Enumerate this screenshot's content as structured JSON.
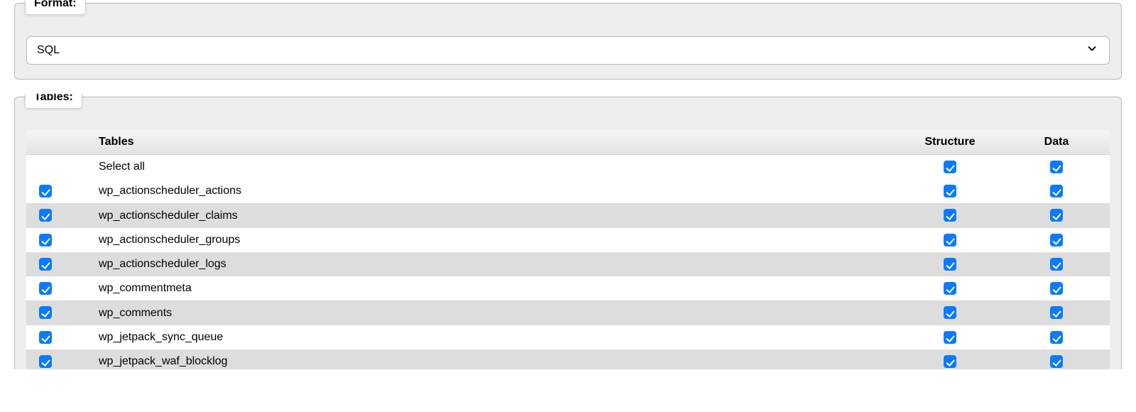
{
  "format": {
    "legend": "Format:",
    "value": "SQL"
  },
  "tables_section": {
    "legend": "Tables:",
    "columns": {
      "sel": "",
      "name": "Tables",
      "structure": "Structure",
      "data": "Data"
    },
    "select_all_label": "Select all",
    "select_all": {
      "structure": true,
      "data": true
    },
    "rows": [
      {
        "name": "wp_actionscheduler_actions",
        "selected": true,
        "structure": true,
        "data": true
      },
      {
        "name": "wp_actionscheduler_claims",
        "selected": true,
        "structure": true,
        "data": true
      },
      {
        "name": "wp_actionscheduler_groups",
        "selected": true,
        "structure": true,
        "data": true
      },
      {
        "name": "wp_actionscheduler_logs",
        "selected": true,
        "structure": true,
        "data": true
      },
      {
        "name": "wp_commentmeta",
        "selected": true,
        "structure": true,
        "data": true
      },
      {
        "name": "wp_comments",
        "selected": true,
        "structure": true,
        "data": true
      },
      {
        "name": "wp_jetpack_sync_queue",
        "selected": true,
        "structure": true,
        "data": true
      },
      {
        "name": "wp_jetpack_waf_blocklog",
        "selected": true,
        "structure": true,
        "data": true
      }
    ]
  },
  "colors": {
    "checkbox_checked_bg": "#0a7aff",
    "fieldset_bg": "#eeeeee",
    "row_odd_bg": "#dddddd",
    "border": "#b7b7b7"
  }
}
